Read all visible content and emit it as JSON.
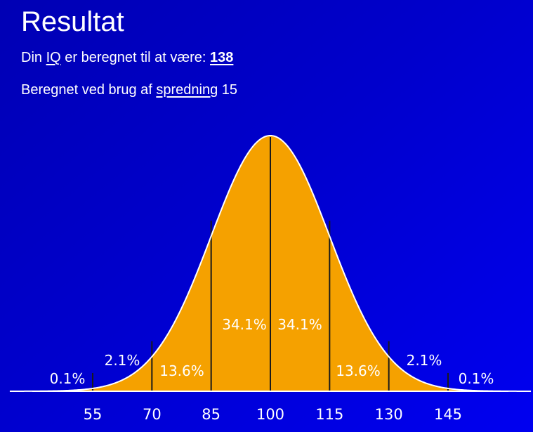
{
  "header": {
    "title": "Resultat",
    "iq_prefix": "Din ",
    "iq_link": "IQ",
    "iq_middle": " er beregnet til at være: ",
    "iq_value": "138",
    "spread_prefix": "Beregnet ved brug af ",
    "spread_link": "spredning",
    "spread_suffix": " 15"
  },
  "chart_data": {
    "type": "area",
    "mean": 100,
    "sd": 15,
    "xlim": [
      34,
      166
    ],
    "x_ticks": [
      55,
      70,
      85,
      100,
      115,
      130,
      145
    ],
    "x_tick_labels": [
      "55",
      "70",
      "85",
      "100",
      "115",
      "130",
      "145"
    ],
    "segments": [
      {
        "from": 40,
        "to": 55,
        "percent": "0.1%"
      },
      {
        "from": 55,
        "to": 70,
        "percent": "2.1%"
      },
      {
        "from": 70,
        "to": 85,
        "percent": "13.6%"
      },
      {
        "from": 85,
        "to": 100,
        "percent": "34.1%"
      },
      {
        "from": 100,
        "to": 115,
        "percent": "34.1%"
      },
      {
        "from": 115,
        "to": 130,
        "percent": "13.6%"
      },
      {
        "from": 130,
        "to": 145,
        "percent": "2.1%"
      },
      {
        "from": 145,
        "to": 160,
        "percent": "0.1%"
      }
    ],
    "colors": {
      "fill": "#f5a100",
      "curve": "#ffffff",
      "divider": "#1a1a1a",
      "label": "#ffffff"
    },
    "title": "",
    "xlabel": "",
    "ylabel": ""
  }
}
